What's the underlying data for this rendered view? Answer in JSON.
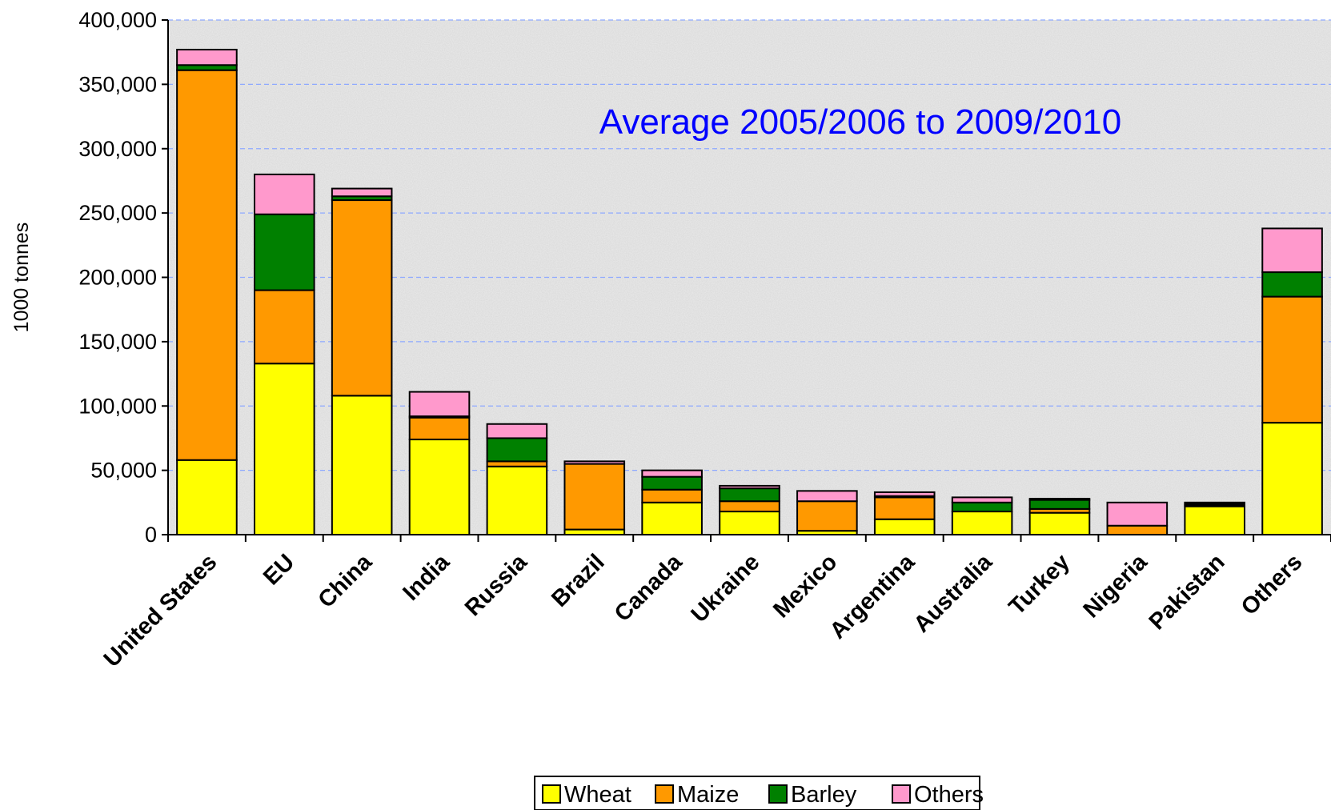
{
  "chart_data": {
    "type": "bar",
    "stacked": true,
    "title": "",
    "annotation": "Average 2005/2006 to 2009/2010",
    "xlabel": "",
    "ylabel": "1000 tonnes",
    "ylim": [
      0,
      400000
    ],
    "yticks": [
      0,
      50000,
      100000,
      150000,
      200000,
      250000,
      300000,
      350000,
      400000
    ],
    "ytick_labels": [
      "0",
      "50,000",
      "100,000",
      "150,000",
      "200,000",
      "250,000",
      "300,000",
      "350,000",
      "400,000"
    ],
    "grid": true,
    "legend_position": "bottom-center",
    "categories": [
      "United States",
      "EU",
      "China",
      "India",
      "Russia",
      "Brazil",
      "Canada",
      "Ukraine",
      "Mexico",
      "Argentina",
      "Australia",
      "Turkey",
      "Nigeria",
      "Pakistan",
      "Others"
    ],
    "series": [
      {
        "name": "Wheat",
        "color": "#ffff00",
        "values": [
          58000,
          133000,
          108000,
          74000,
          53000,
          4000,
          25000,
          18000,
          3000,
          12000,
          18000,
          17000,
          0,
          22000,
          87000
        ]
      },
      {
        "name": "Maize",
        "color": "#ff9900",
        "values": [
          303000,
          57000,
          152000,
          17000,
          4000,
          51000,
          10000,
          8000,
          23000,
          17000,
          0,
          3000,
          7000,
          1000,
          98000
        ]
      },
      {
        "name": "Barley",
        "color": "#008000",
        "values": [
          4000,
          59000,
          3000,
          1000,
          18000,
          0,
          10000,
          10000,
          0,
          1000,
          7000,
          7000,
          0,
          1000,
          19000
        ]
      },
      {
        "name": "Others",
        "color": "#ff99cc",
        "values": [
          12000,
          31000,
          6000,
          19000,
          11000,
          2000,
          5000,
          2000,
          8000,
          3000,
          4000,
          1000,
          18000,
          1000,
          34000
        ]
      }
    ],
    "annotation_color": "#0000ff",
    "gridline_color": "#8ea9ff",
    "plot_background": "#e9e9e9"
  }
}
